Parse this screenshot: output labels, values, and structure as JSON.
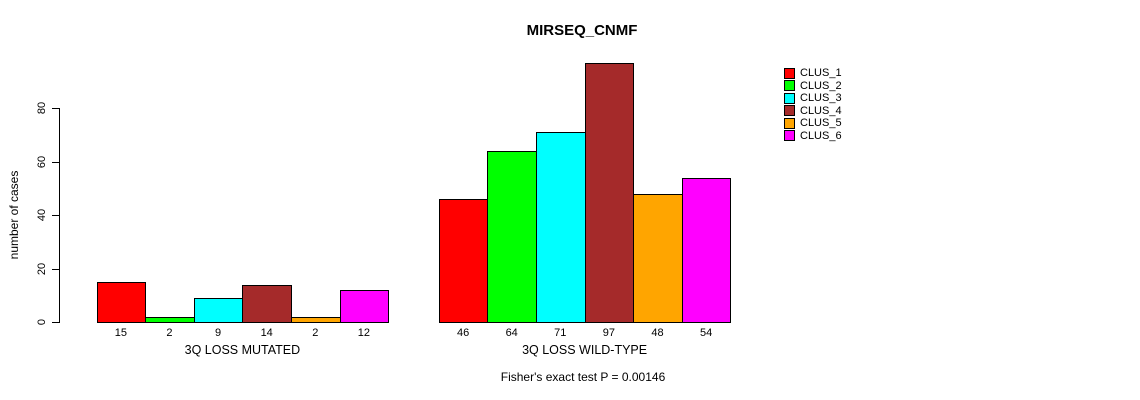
{
  "chart_data": {
    "type": "bar",
    "title": "MIRSEQ_CNMF",
    "ylabel": "number of cases",
    "xlabel": "",
    "ylim": [
      0,
      80
    ],
    "yticks": [
      0,
      20,
      40,
      60,
      80
    ],
    "grid": false,
    "legend_position": "right",
    "categories": [
      "3Q LOSS MUTATED",
      "3Q LOSS WILD-TYPE"
    ],
    "series": [
      {
        "name": "CLUS_1",
        "color": "#ff0000",
        "values": [
          15,
          46
        ]
      },
      {
        "name": "CLUS_2",
        "color": "#00ff00",
        "values": [
          2,
          64
        ]
      },
      {
        "name": "CLUS_3",
        "color": "#00ffff",
        "values": [
          9,
          71
        ]
      },
      {
        "name": "CLUS_4",
        "color": "#a52a2a",
        "values": [
          14,
          97
        ]
      },
      {
        "name": "CLUS_5",
        "color": "#ffa500",
        "values": [
          2,
          48
        ]
      },
      {
        "name": "CLUS_6",
        "color": "#ff00ff",
        "values": [
          12,
          54
        ]
      }
    ],
    "bar_value_labels": true,
    "annotation": "Fisher's exact test P = 0.00146",
    "colors": {
      "background": "#ffffff",
      "axis": "#000000",
      "text": "#000000"
    }
  }
}
